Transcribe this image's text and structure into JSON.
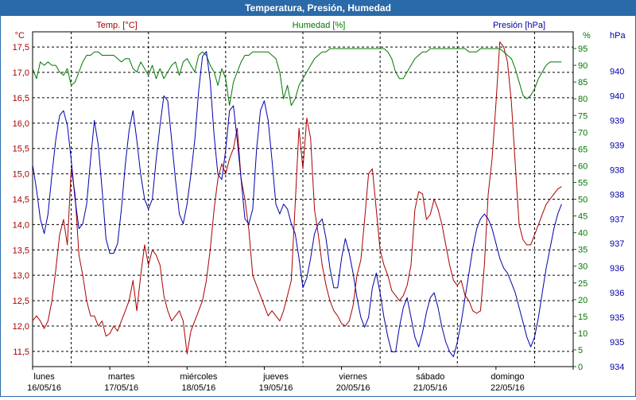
{
  "window": {
    "title": "Temperatura, Presión, Humedad"
  },
  "colors": {
    "temp": "#aa0000",
    "humidity": "#007700",
    "pressure": "#0000aa",
    "grid": "#000000",
    "text": "#000000"
  },
  "chart_data": {
    "type": "line",
    "title": "Temperatura, Presión, Humedad",
    "x": {
      "range": [
        0,
        7
      ],
      "day_labels": [
        {
          "day": "lunes",
          "date": "16/05/16",
          "x": 0
        },
        {
          "day": "martes",
          "date": "17/05/16",
          "x": 1
        },
        {
          "day": "miércoles",
          "date": "18/05/16",
          "x": 2
        },
        {
          "day": "jueves",
          "date": "19/05/16",
          "x": 3
        },
        {
          "day": "viernes",
          "date": "20/05/16",
          "x": 4
        },
        {
          "day": "sábado",
          "date": "21/05/16",
          "x": 5
        },
        {
          "day": "domingo",
          "date": "22/05/16",
          "x": 6
        }
      ]
    },
    "axes": {
      "temp": {
        "unit": "°C",
        "label": "Temp. [°C]",
        "range": [
          11.2,
          17.8
        ],
        "ticks": [
          11.5,
          12.0,
          12.5,
          13.0,
          13.5,
          14.0,
          14.5,
          15.0,
          15.5,
          16.0,
          16.5,
          17.0,
          17.5
        ],
        "tick_labels": [
          "11,5",
          "12,0",
          "12,5",
          "13,0",
          "13,5",
          "14,0",
          "14,5",
          "15,0",
          "15,5",
          "16,0",
          "16,5",
          "17,0",
          "17,5"
        ]
      },
      "humidity": {
        "unit": "%",
        "label": "Humedad [%]",
        "range": [
          0,
          100
        ],
        "ticks": [
          0,
          5,
          10,
          15,
          20,
          25,
          30,
          35,
          40,
          45,
          50,
          55,
          60,
          65,
          70,
          75,
          80,
          85,
          90,
          95
        ],
        "tick_labels": [
          "0",
          "5",
          "10",
          "15",
          "20",
          "25",
          "30",
          "35",
          "40",
          "45",
          "50",
          "55",
          "60",
          "65",
          "70",
          "75",
          "80",
          "85",
          "90",
          "95"
        ]
      },
      "pressure": {
        "unit": "hPa",
        "label": "Presión [hPa]",
        "range": [
          934,
          940.8
        ],
        "ticks": [
          934,
          934.5,
          935,
          935.5,
          936,
          936.5,
          937,
          937.5,
          938,
          938.5,
          939,
          939.5,
          940
        ],
        "tick_labels": [
          "934",
          "935",
          "935",
          "936",
          "936",
          "937",
          "937",
          "938",
          "938",
          "939",
          "939",
          "940",
          "940"
        ]
      }
    },
    "series": [
      {
        "name": "Temp. [°C]",
        "axis": "temp",
        "x": [
          0,
          0.05,
          0.1,
          0.15,
          0.2,
          0.25,
          0.3,
          0.35,
          0.4,
          0.45,
          0.5,
          0.55,
          0.6,
          0.65,
          0.7,
          0.75,
          0.8,
          0.85,
          0.9,
          0.95,
          1.0,
          1.05,
          1.1,
          1.15,
          1.2,
          1.25,
          1.3,
          1.35,
          1.4,
          1.45,
          1.5,
          1.55,
          1.6,
          1.65,
          1.7,
          1.75,
          1.8,
          1.85,
          1.9,
          1.95,
          2.0,
          2.05,
          2.1,
          2.15,
          2.2,
          2.25,
          2.3,
          2.35,
          2.4,
          2.45,
          2.5,
          2.55,
          2.6,
          2.65,
          2.7,
          2.75,
          2.8,
          2.85,
          2.9,
          2.95,
          3.0,
          3.05,
          3.1,
          3.15,
          3.2,
          3.25,
          3.3,
          3.35,
          3.4,
          3.45,
          3.5,
          3.55,
          3.6,
          3.65,
          3.7,
          3.75,
          3.8,
          3.85,
          3.9,
          3.95,
          4.0,
          4.05,
          4.1,
          4.15,
          4.2,
          4.25,
          4.3,
          4.35,
          4.4,
          4.45,
          4.5,
          4.55,
          4.6,
          4.65,
          4.7,
          4.75,
          4.8,
          4.85,
          4.9,
          4.95,
          5.0,
          5.05,
          5.1,
          5.15,
          5.2,
          5.25,
          5.3,
          5.35,
          5.4,
          5.45,
          5.5,
          5.55,
          5.6,
          5.65,
          5.7,
          5.75,
          5.8,
          5.85,
          5.9,
          5.95,
          6.0,
          6.05,
          6.1,
          6.15,
          6.2,
          6.25,
          6.3,
          6.35,
          6.4,
          6.45,
          6.5,
          6.55,
          6.6,
          6.65,
          6.7,
          6.75,
          6.8,
          6.85,
          6.9,
          6.95
        ],
        "y": [
          12.1,
          12.2,
          12.1,
          11.95,
          12.1,
          12.5,
          13.1,
          13.8,
          14.1,
          13.6,
          15.1,
          14.6,
          13.4,
          13.0,
          12.5,
          12.2,
          12.2,
          12.0,
          12.1,
          11.8,
          11.85,
          12.0,
          11.9,
          12.1,
          12.3,
          12.5,
          12.9,
          12.3,
          13.0,
          13.6,
          13.2,
          13.5,
          13.4,
          13.2,
          12.6,
          12.3,
          12.1,
          12.2,
          12.3,
          12.1,
          11.45,
          11.9,
          12.1,
          12.3,
          12.5,
          12.9,
          13.5,
          14.3,
          14.9,
          15.2,
          15.0,
          15.3,
          15.5,
          15.9,
          14.9,
          14.5,
          13.9,
          13.0,
          12.8,
          12.6,
          12.4,
          12.2,
          12.3,
          12.2,
          12.1,
          12.3,
          12.6,
          12.9,
          14.4,
          15.9,
          15.1,
          16.1,
          15.7,
          14.3,
          13.8,
          13.2,
          12.8,
          12.5,
          12.3,
          12.2,
          12.05,
          12.0,
          12.1,
          12.4,
          13.0,
          13.3,
          14.1,
          15.0,
          15.1,
          14.3,
          13.5,
          13.2,
          13.0,
          12.7,
          12.6,
          12.5,
          12.6,
          12.8,
          13.2,
          14.3,
          14.65,
          14.6,
          14.1,
          14.2,
          14.5,
          14.3,
          14.0,
          13.6,
          13.2,
          12.9,
          12.8,
          12.9,
          12.6,
          12.5,
          12.3,
          12.25,
          12.3,
          13.2,
          14.6,
          15.3,
          16.4,
          17.6,
          17.5,
          17.2,
          16.4,
          15.2,
          14.0,
          13.7,
          13.6,
          13.6,
          13.8,
          14.0,
          14.2,
          14.4,
          14.5,
          14.6,
          14.7,
          14.75,
          14.8,
          14.8
        ],
        "draw_until": 6.85
      },
      {
        "name": "Humedad [%]",
        "axis": "humidity",
        "x": [
          0,
          0.05,
          0.1,
          0.15,
          0.2,
          0.25,
          0.3,
          0.35,
          0.4,
          0.45,
          0.5,
          0.55,
          0.6,
          0.65,
          0.7,
          0.75,
          0.8,
          0.85,
          0.9,
          0.95,
          1.0,
          1.05,
          1.1,
          1.15,
          1.2,
          1.25,
          1.3,
          1.35,
          1.4,
          1.45,
          1.5,
          1.55,
          1.6,
          1.65,
          1.7,
          1.75,
          1.8,
          1.85,
          1.9,
          1.95,
          2.0,
          2.05,
          2.1,
          2.15,
          2.2,
          2.25,
          2.3,
          2.35,
          2.4,
          2.45,
          2.5,
          2.55,
          2.6,
          2.65,
          2.7,
          2.75,
          2.8,
          2.85,
          2.9,
          2.95,
          3.0,
          3.05,
          3.1,
          3.15,
          3.2,
          3.25,
          3.3,
          3.35,
          3.4,
          3.45,
          3.5,
          3.55,
          3.6,
          3.65,
          3.7,
          3.75,
          3.8,
          3.85,
          3.9,
          3.95,
          4.0,
          4.05,
          4.1,
          4.15,
          4.2,
          4.25,
          4.3,
          4.35,
          4.4,
          4.45,
          4.5,
          4.55,
          4.6,
          4.65,
          4.7,
          4.75,
          4.8,
          4.85,
          4.9,
          4.95,
          5.0,
          5.05,
          5.1,
          5.15,
          5.2,
          5.25,
          5.3,
          5.35,
          5.4,
          5.45,
          5.5,
          5.55,
          5.6,
          5.65,
          5.7,
          5.75,
          5.8,
          5.85,
          5.9,
          5.95,
          6.0,
          6.05,
          6.1,
          6.15,
          6.2,
          6.25,
          6.3,
          6.35,
          6.4,
          6.45,
          6.5,
          6.55,
          6.6,
          6.65,
          6.7,
          6.75,
          6.8,
          6.85,
          6.9,
          6.95
        ],
        "y": [
          89,
          86,
          91,
          90,
          91,
          90,
          90,
          88,
          87,
          89,
          84,
          85,
          88,
          91,
          93,
          93,
          94,
          94,
          93,
          93,
          93,
          93,
          92,
          91,
          92,
          92,
          89,
          88,
          91,
          89,
          87,
          90,
          86,
          89,
          86,
          88,
          90,
          91,
          87,
          91,
          92,
          90,
          88,
          93,
          94,
          93,
          90,
          88,
          84,
          89,
          86,
          78,
          85,
          88,
          91,
          93,
          93,
          94,
          94,
          94,
          94,
          94,
          93,
          92,
          88,
          80,
          84,
          78,
          80,
          84,
          86,
          88,
          90,
          92,
          93,
          94,
          94,
          95,
          95,
          95,
          95,
          95,
          95,
          95,
          95,
          95,
          95,
          95,
          95,
          95,
          95,
          95,
          94,
          92,
          88,
          86,
          86,
          88,
          90,
          92,
          93,
          94,
          94,
          95,
          95,
          95,
          95,
          95,
          95,
          95,
          95,
          95,
          95,
          94,
          94,
          94,
          95,
          95,
          95,
          95,
          95,
          95,
          94,
          93,
          92,
          89,
          85,
          81,
          80,
          81,
          83,
          86,
          88,
          90,
          91,
          91,
          91,
          91,
          92,
          92
        ],
        "draw_until": 6.85
      },
      {
        "name": "Presión [hPa]",
        "axis": "pressure",
        "x": [
          0,
          0.05,
          0.1,
          0.15,
          0.2,
          0.25,
          0.3,
          0.35,
          0.4,
          0.45,
          0.5,
          0.55,
          0.6,
          0.65,
          0.7,
          0.75,
          0.8,
          0.85,
          0.9,
          0.95,
          1.0,
          1.05,
          1.1,
          1.15,
          1.2,
          1.25,
          1.3,
          1.35,
          1.4,
          1.45,
          1.5,
          1.55,
          1.6,
          1.65,
          1.7,
          1.75,
          1.8,
          1.85,
          1.9,
          1.95,
          2.0,
          2.05,
          2.1,
          2.15,
          2.2,
          2.25,
          2.3,
          2.35,
          2.4,
          2.45,
          2.5,
          2.55,
          2.6,
          2.65,
          2.7,
          2.75,
          2.8,
          2.85,
          2.9,
          2.95,
          3.0,
          3.05,
          3.1,
          3.15,
          3.2,
          3.25,
          3.3,
          3.35,
          3.4,
          3.45,
          3.5,
          3.55,
          3.6,
          3.65,
          3.7,
          3.75,
          3.8,
          3.85,
          3.9,
          3.95,
          4.0,
          4.05,
          4.1,
          4.15,
          4.2,
          4.25,
          4.3,
          4.35,
          4.4,
          4.45,
          4.5,
          4.55,
          4.6,
          4.65,
          4.7,
          4.75,
          4.8,
          4.85,
          4.9,
          4.95,
          5.0,
          5.05,
          5.1,
          5.15,
          5.2,
          5.25,
          5.3,
          5.35,
          5.4,
          5.45,
          5.5,
          5.55,
          5.6,
          5.65,
          5.7,
          5.75,
          5.8,
          5.85,
          5.9,
          5.95,
          6.0,
          6.05,
          6.1,
          6.15,
          6.2,
          6.25,
          6.3,
          6.35,
          6.4,
          6.45,
          6.5,
          6.55,
          6.6,
          6.65,
          6.7,
          6.75,
          6.8,
          6.85,
          6.9,
          6.95
        ],
        "y": [
          938.1,
          937.6,
          937.0,
          936.7,
          937.1,
          937.9,
          938.6,
          939.1,
          939.2,
          938.9,
          938.2,
          937.4,
          936.8,
          936.9,
          937.3,
          938.2,
          939.0,
          938.5,
          937.6,
          936.6,
          936.3,
          936.3,
          936.5,
          937.2,
          938.1,
          938.8,
          939.2,
          938.6,
          937.9,
          937.4,
          937.2,
          937.4,
          938.2,
          938.9,
          939.5,
          939.4,
          938.6,
          937.8,
          937.1,
          936.9,
          937.3,
          937.9,
          938.6,
          939.6,
          940.3,
          940.4,
          939.8,
          938.7,
          937.9,
          937.8,
          938.4,
          939.2,
          939.3,
          938.6,
          937.8,
          937.0,
          936.9,
          937.2,
          938.4,
          939.2,
          939.4,
          939.0,
          938.2,
          937.3,
          937.1,
          937.3,
          937.2,
          936.9,
          936.7,
          936.2,
          935.6,
          935.8,
          936.2,
          936.7,
          936.9,
          937.0,
          936.6,
          936.0,
          935.6,
          935.6,
          936.2,
          936.6,
          936.3,
          935.9,
          935.4,
          935.0,
          934.8,
          935.0,
          935.6,
          935.9,
          935.5,
          935.0,
          934.6,
          934.3,
          934.3,
          934.8,
          935.2,
          935.4,
          935.0,
          934.6,
          934.4,
          934.7,
          935.1,
          935.4,
          935.5,
          935.2,
          934.8,
          934.5,
          934.3,
          934.2,
          934.5,
          934.9,
          935.4,
          935.9,
          936.4,
          936.8,
          937.0,
          937.1,
          937.0,
          936.8,
          936.5,
          936.2,
          936.0,
          935.9,
          935.7,
          935.5,
          935.2,
          934.9,
          934.6,
          934.4,
          934.6,
          935.0,
          935.5,
          936.0,
          936.4,
          936.8,
          937.1,
          937.3,
          937.4,
          937.45
        ],
        "draw_until": 6.85
      }
    ]
  }
}
